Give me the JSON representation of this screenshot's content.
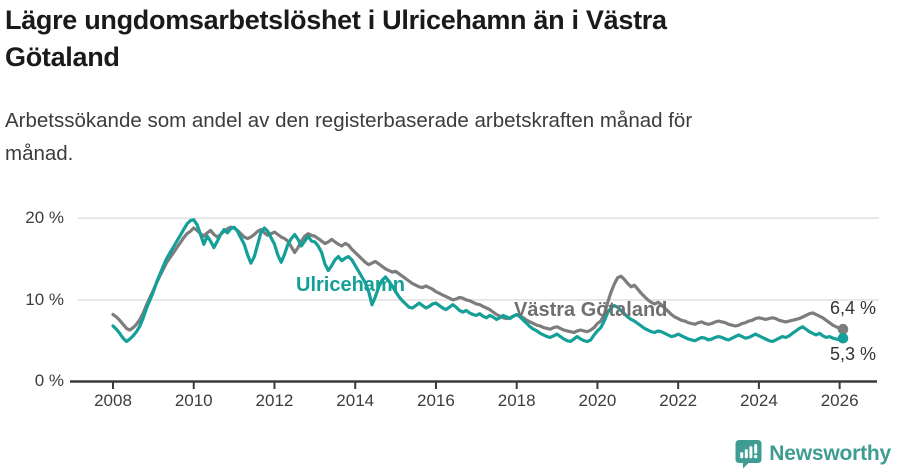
{
  "header": {
    "title_lines": [
      "Lägre ungdomsarbetslöshet i Ulricehamn än i Västra",
      "Götaland"
    ],
    "subtitle_lines": [
      "Arbetssökande som andel av den registerbaserade arbetskraften månad för",
      "månad."
    ]
  },
  "chart_data": {
    "type": "line",
    "title": "Lägre ungdomsarbetslöshet i Ulricehamn än i Västra Götaland",
    "subtitle": "Arbetssökande som andel av den registerbaserade arbetskraften månad för månad.",
    "xlabel": "",
    "ylabel": "",
    "x_range": {
      "start": "2008-01",
      "end": "2026-02",
      "frequency": "monthly"
    },
    "ylim": [
      0,
      21.5
    ],
    "grid": "horizontal",
    "y_tick_labels": [
      "20 %",
      "10 %",
      "0 %"
    ],
    "x_tick_labels": [
      "2008",
      "2010",
      "2012",
      "2014",
      "2016",
      "2018",
      "2020",
      "2022",
      "2024",
      "2026"
    ],
    "series": [
      {
        "name": "Ulricehamn",
        "color": "#14a098",
        "end_label": "5,3 %",
        "end_value": 5.3,
        "values": [
          6.8,
          6.4,
          5.9,
          5.3,
          4.9,
          5.2,
          5.6,
          6.1,
          6.8,
          7.8,
          9.0,
          10.0,
          11.0,
          12.2,
          13.2,
          14.2,
          15.1,
          15.8,
          16.5,
          17.2,
          17.9,
          18.6,
          19.3,
          19.7,
          19.8,
          19.2,
          18.0,
          16.8,
          17.8,
          17.2,
          16.4,
          17.2,
          18.0,
          18.6,
          18.2,
          18.7,
          18.9,
          18.4,
          17.6,
          16.8,
          15.5,
          14.5,
          15.3,
          16.8,
          18.3,
          18.8,
          18.4,
          17.6,
          16.8,
          15.5,
          14.6,
          15.6,
          16.8,
          17.5,
          18.0,
          17.4,
          16.6,
          17.2,
          17.8,
          17.2,
          17.1,
          16.6,
          15.8,
          14.4,
          13.6,
          14.2,
          14.9,
          15.3,
          14.8,
          15.1,
          15.3,
          14.9,
          14.2,
          13.5,
          12.8,
          12.1,
          11.0,
          9.4,
          10.4,
          11.6,
          12.4,
          12.8,
          12.3,
          11.7,
          11.0,
          10.4,
          9.9,
          9.5,
          9.1,
          9.0,
          9.3,
          9.6,
          9.3,
          9.0,
          9.2,
          9.5,
          9.6,
          9.3,
          9.0,
          8.8,
          9.1,
          9.4,
          9.1,
          8.7,
          8.5,
          8.7,
          8.4,
          8.2,
          8.1,
          8.3,
          8.0,
          7.8,
          8.1,
          7.9,
          7.6,
          7.8,
          8.1,
          7.9,
          7.7,
          8.0,
          8.2,
          7.9,
          7.5,
          7.1,
          6.7,
          6.4,
          6.2,
          5.9,
          5.7,
          5.5,
          5.4,
          5.6,
          5.8,
          5.5,
          5.2,
          5.0,
          4.9,
          5.2,
          5.5,
          5.2,
          5.0,
          4.9,
          5.1,
          5.7,
          6.2,
          6.6,
          7.4,
          8.4,
          9.0,
          9.3,
          9.1,
          8.7,
          8.3,
          7.9,
          7.6,
          7.4,
          7.1,
          6.8,
          6.5,
          6.3,
          6.1,
          6.0,
          6.2,
          6.1,
          5.9,
          5.7,
          5.5,
          5.6,
          5.8,
          5.6,
          5.4,
          5.2,
          5.1,
          5.0,
          5.2,
          5.4,
          5.3,
          5.1,
          5.2,
          5.4,
          5.5,
          5.4,
          5.2,
          5.1,
          5.3,
          5.5,
          5.7,
          5.5,
          5.3,
          5.4,
          5.6,
          5.8,
          5.6,
          5.4,
          5.2,
          5.0,
          4.9,
          5.1,
          5.3,
          5.5,
          5.4,
          5.6,
          5.9,
          6.2,
          6.5,
          6.7,
          6.4,
          6.1,
          5.9,
          5.7,
          5.9,
          5.6,
          5.4,
          5.5,
          5.3,
          5.2,
          5.1,
          5.3
        ]
      },
      {
        "name": "Västra Götaland",
        "color": "#7d7d7d",
        "end_label": "6,4 %",
        "end_value": 6.4,
        "values": [
          8.2,
          7.9,
          7.5,
          7.0,
          6.5,
          6.3,
          6.6,
          7.0,
          7.6,
          8.4,
          9.4,
          10.3,
          11.2,
          12.1,
          13.0,
          13.8,
          14.6,
          15.2,
          15.8,
          16.4,
          17.0,
          17.6,
          18.1,
          18.4,
          18.8,
          18.5,
          18.1,
          17.8,
          18.2,
          18.5,
          18.0,
          17.7,
          18.0,
          18.4,
          18.7,
          18.9,
          18.8,
          18.5,
          18.1,
          17.7,
          17.5,
          17.7,
          18.0,
          18.4,
          18.6,
          18.2,
          17.9,
          18.1,
          18.3,
          18.0,
          17.7,
          17.5,
          17.2,
          16.5,
          15.8,
          16.4,
          17.2,
          17.8,
          18.1,
          17.9,
          17.8,
          17.5,
          17.2,
          16.9,
          17.1,
          17.4,
          17.1,
          16.8,
          16.6,
          16.9,
          16.7,
          16.2,
          15.8,
          15.4,
          15.0,
          14.6,
          14.3,
          14.5,
          14.7,
          14.4,
          14.1,
          13.8,
          13.6,
          13.4,
          13.5,
          13.2,
          12.9,
          12.6,
          12.3,
          12.0,
          11.8,
          11.6,
          11.5,
          11.7,
          11.5,
          11.3,
          11.0,
          10.8,
          10.6,
          10.4,
          10.2,
          10.0,
          10.1,
          10.3,
          10.2,
          10.0,
          9.9,
          9.7,
          9.5,
          9.4,
          9.2,
          9.0,
          8.8,
          8.5,
          8.2,
          8.0,
          7.8,
          7.7,
          7.8,
          8.0,
          8.2,
          8.0,
          7.8,
          7.5,
          7.3,
          7.1,
          6.9,
          6.8,
          6.6,
          6.5,
          6.4,
          6.6,
          6.7,
          6.5,
          6.3,
          6.2,
          6.1,
          6.0,
          6.2,
          6.3,
          6.2,
          6.1,
          6.3,
          6.6,
          7.1,
          7.4,
          8.2,
          9.6,
          10.9,
          11.9,
          12.7,
          12.9,
          12.5,
          12.0,
          11.6,
          11.8,
          11.3,
          10.8,
          10.4,
          10.0,
          9.7,
          9.5,
          9.7,
          9.4,
          9.0,
          8.6,
          8.2,
          7.9,
          7.7,
          7.5,
          7.4,
          7.2,
          7.1,
          7.0,
          7.2,
          7.3,
          7.1,
          7.0,
          7.1,
          7.3,
          7.4,
          7.3,
          7.2,
          7.0,
          6.9,
          6.8,
          6.9,
          7.1,
          7.2,
          7.4,
          7.5,
          7.7,
          7.8,
          7.7,
          7.6,
          7.7,
          7.8,
          7.7,
          7.5,
          7.4,
          7.3,
          7.4,
          7.5,
          7.6,
          7.7,
          7.9,
          8.1,
          8.3,
          8.4,
          8.2,
          8.0,
          7.8,
          7.5,
          7.2,
          6.9,
          6.7,
          6.5,
          6.4
        ]
      }
    ],
    "style": {
      "gridline_color": "#e2e2e2",
      "axis_color": "#3a3a3a",
      "label_color": "#3d3d3d"
    }
  },
  "footer": {
    "brand": "Newsworthy",
    "brand_color": "#3f9c93"
  }
}
